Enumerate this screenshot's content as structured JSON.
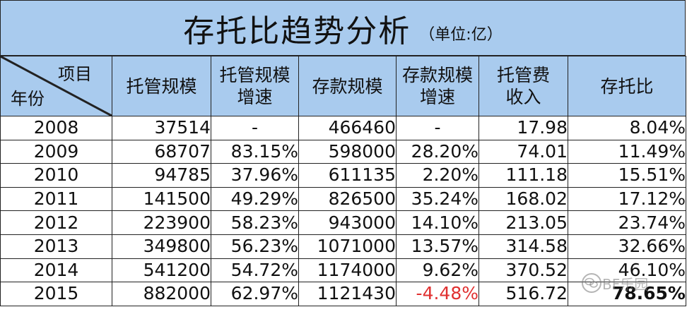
{
  "title": "存托比趋势分析",
  "unit": "（单位:亿）",
  "header": {
    "corner_top": "项目",
    "corner_bottom": "年份",
    "columns": [
      [
        "托管规模"
      ],
      [
        "托管规模",
        "增速"
      ],
      [
        "存款规模"
      ],
      [
        "存款规模",
        "增速"
      ],
      [
        "托管费",
        "收入"
      ],
      [
        "存托比"
      ]
    ]
  },
  "rows": [
    {
      "year": "2008",
      "custody": "37514",
      "custody_growth": "-",
      "deposit": "466460",
      "deposit_growth": "-",
      "fee": "17.98",
      "ratio": "8.04%"
    },
    {
      "year": "2009",
      "custody": "68707",
      "custody_growth": "83.15%",
      "deposit": "598000",
      "deposit_growth": "28.20%",
      "fee": "74.01",
      "ratio": "11.49%"
    },
    {
      "year": "2010",
      "custody": "94785",
      "custody_growth": "37.96%",
      "deposit": "611135",
      "deposit_growth": "2.20%",
      "fee": "111.18",
      "ratio": "15.51%"
    },
    {
      "year": "2011",
      "custody": "141500",
      "custody_growth": "49.29%",
      "deposit": "826500",
      "deposit_growth": "35.24%",
      "fee": "168.02",
      "ratio": "17.12%"
    },
    {
      "year": "2012",
      "custody": "223900",
      "custody_growth": "58.23%",
      "deposit": "943000",
      "deposit_growth": "14.10%",
      "fee": "213.05",
      "ratio": "23.74%"
    },
    {
      "year": "2013",
      "custody": "349800",
      "custody_growth": "56.23%",
      "deposit": "1071000",
      "deposit_growth": "13.57%",
      "fee": "314.58",
      "ratio": "32.66%"
    },
    {
      "year": "2014",
      "custody": "541200",
      "custody_growth": "54.72%",
      "deposit": "1174000",
      "deposit_growth": "9.62%",
      "fee": "370.52",
      "ratio": "46.10%"
    },
    {
      "year": "2015",
      "custody": "882000",
      "custody_growth": "62.97%",
      "deposit": "1121430",
      "deposit_growth": "-4.48%",
      "fee": "516.72",
      "ratio": "78.65%"
    }
  ],
  "colors": {
    "header_bg": "#a9cbee",
    "negative": "#e03030"
  },
  "watermark": {
    "text": "BF乐园",
    "icon": "wechat-logo-icon"
  }
}
